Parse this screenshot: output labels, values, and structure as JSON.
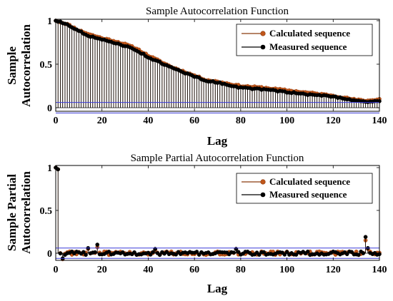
{
  "chart_data": [
    {
      "type": "stem",
      "title": "Sample Autocorrelation Function",
      "xlabel": "Lag",
      "ylabel": [
        "Sample",
        "Autocorrelation"
      ],
      "xlim": [
        0,
        140
      ],
      "ylim": [
        -0.05,
        1
      ],
      "xticks": [
        "0",
        "20",
        "40",
        "60",
        "80",
        "100",
        "120",
        "140"
      ],
      "yticks": [
        "0",
        "0.5",
        "1"
      ],
      "confidence_bounds": [
        0.06,
        -0.06
      ],
      "legend": {
        "placement": "top-right"
      },
      "series": [
        {
          "name": "Calculated sequence",
          "color": "#8b3a0e",
          "marker_color": "#c0561a",
          "anchors": [
            [
              0,
              1.0
            ],
            [
              5,
              0.96
            ],
            [
              10,
              0.89
            ],
            [
              15,
              0.84
            ],
            [
              20,
              0.8
            ],
            [
              25,
              0.77
            ],
            [
              30,
              0.73
            ],
            [
              35,
              0.68
            ],
            [
              40,
              0.6
            ],
            [
              50,
              0.47
            ],
            [
              60,
              0.37
            ],
            [
              65,
              0.32
            ],
            [
              70,
              0.3
            ],
            [
              80,
              0.25
            ],
            [
              90,
              0.23
            ],
            [
              100,
              0.2
            ],
            [
              110,
              0.17
            ],
            [
              120,
              0.14
            ],
            [
              130,
              0.09
            ],
            [
              135,
              0.08
            ],
            [
              140,
              0.1
            ]
          ]
        },
        {
          "name": "Measured sequence",
          "color": "#000000",
          "marker_color": "#000000",
          "anchors": [
            [
              0,
              1.0
            ],
            [
              5,
              0.96
            ],
            [
              10,
              0.88
            ],
            [
              15,
              0.82
            ],
            [
              20,
              0.78
            ],
            [
              25,
              0.75
            ],
            [
              30,
              0.71
            ],
            [
              35,
              0.66
            ],
            [
              40,
              0.58
            ],
            [
              50,
              0.46
            ],
            [
              60,
              0.36
            ],
            [
              65,
              0.31
            ],
            [
              70,
              0.29
            ],
            [
              80,
              0.23
            ],
            [
              90,
              0.21
            ],
            [
              100,
              0.18
            ],
            [
              110,
              0.15
            ],
            [
              120,
              0.13
            ],
            [
              130,
              0.08
            ],
            [
              135,
              0.07
            ],
            [
              140,
              0.07
            ]
          ]
        }
      ]
    },
    {
      "type": "stem",
      "title": "Sample Partial Autocorrelation Function",
      "xlabel": "Lag",
      "ylabel": [
        "Sample Partial",
        "Autocorrelation"
      ],
      "xlim": [
        0,
        140
      ],
      "ylim": [
        -0.08,
        1
      ],
      "xticks": [
        "0",
        "20",
        "40",
        "60",
        "80",
        "100",
        "120",
        "140"
      ],
      "yticks": [
        "0",
        "0.5",
        "1"
      ],
      "confidence_bounds": [
        0.06,
        -0.06
      ],
      "legend": {
        "placement": "top-right"
      },
      "series": [
        {
          "name": "Calculated sequence",
          "color": "#8b3a0e",
          "marker_color": "#c0561a",
          "first_value": 1.0,
          "spikes": [
            [
              1,
              0.98
            ],
            [
              3,
              -0.07
            ],
            [
              14,
              0.05
            ],
            [
              18,
              0.07
            ],
            [
              43,
              0.04
            ],
            [
              78,
              0.05
            ],
            [
              134,
              0.15
            ],
            [
              135,
              0.05
            ]
          ],
          "noise": 0.02
        },
        {
          "name": "Measured sequence",
          "color": "#000000",
          "marker_color": "#000000",
          "first_value": 1.0,
          "spikes": [
            [
              1,
              0.98
            ],
            [
              3,
              -0.06
            ],
            [
              14,
              0.06
            ],
            [
              18,
              0.1
            ],
            [
              43,
              0.05
            ],
            [
              78,
              0.05
            ],
            [
              134,
              0.19
            ],
            [
              135,
              0.06
            ]
          ],
          "noise": 0.02
        }
      ]
    }
  ]
}
